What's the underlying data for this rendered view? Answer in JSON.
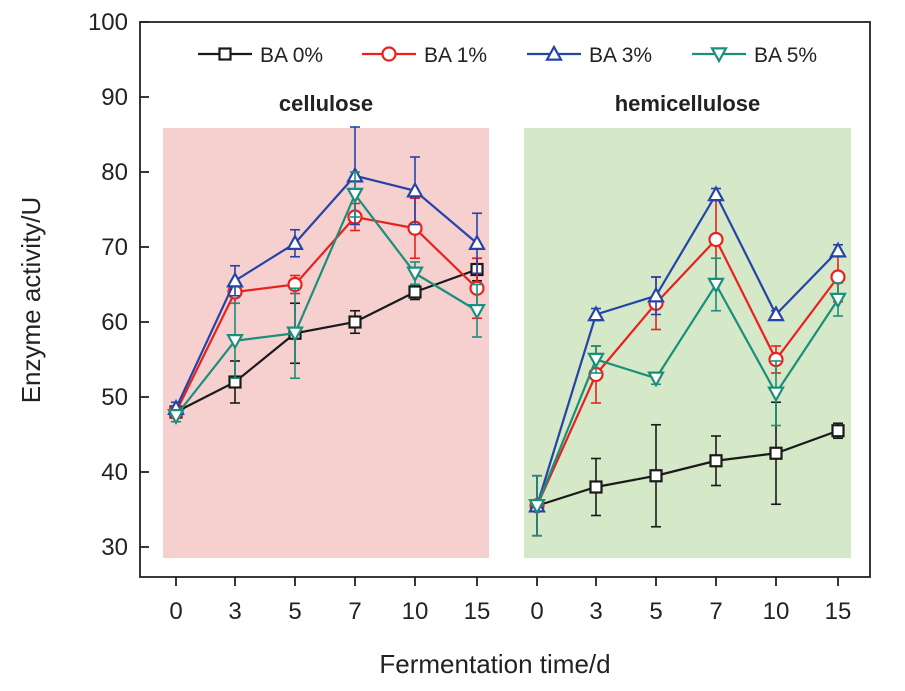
{
  "chart_data": {
    "type": "line",
    "ylabel": "Enzyme activity/U",
    "xlabel": "Fermentation time/d",
    "ylim": [
      28,
      100
    ],
    "yticks": [
      30,
      40,
      50,
      60,
      70,
      80,
      90,
      100
    ],
    "x_ticks": [
      "0",
      "3",
      "5",
      "7",
      "10",
      "15"
    ],
    "legend_position": "top-right",
    "panels": [
      {
        "title": "cellulose",
        "background": "#f6cfcf",
        "series": [
          {
            "name": "BA 0%",
            "color": "#1a1a1a",
            "marker": "square",
            "values": [
              48,
              52,
              58.5,
              60,
              64,
              67
            ],
            "errors": [
              0.8,
              2.8,
              4,
              1.5,
              1,
              1.5
            ]
          },
          {
            "name": "BA 1%",
            "color": "#e8211f",
            "marker": "circle",
            "values": [
              48,
              64,
              65,
              74,
              72.5,
              64.5
            ],
            "errors": [
              0.8,
              1.5,
              1.2,
              1.8,
              4,
              4
            ]
          },
          {
            "name": "BA 3%",
            "color": "#2444a8",
            "marker": "triangle-up",
            "values": [
              48.5,
              65.5,
              70.5,
              79.5,
              77.5,
              70.5
            ],
            "errors": [
              0.8,
              2,
              1.8,
              6.5,
              4.5,
              4
            ]
          },
          {
            "name": "BA 5%",
            "color": "#1a8f7a",
            "marker": "triangle-down",
            "values": [
              47.5,
              57.5,
              58.5,
              77,
              66.5,
              61.5
            ],
            "errors": [
              0.8,
              5,
              6,
              3,
              1.5,
              3.5
            ]
          }
        ]
      },
      {
        "title": "hemicellulose",
        "background": "#d5e8c8",
        "series": [
          {
            "name": "BA 0%",
            "color": "#1a1a1a",
            "marker": "square",
            "values": [
              35.5,
              38,
              39.5,
              41.5,
              42.5,
              45.5
            ],
            "errors": [
              4,
              3.8,
              6.8,
              3.3,
              6.8,
              1
            ]
          },
          {
            "name": "BA 1%",
            "color": "#e8211f",
            "marker": "circle",
            "values": [
              35.5,
              53,
              62.5,
              71,
              55,
              66
            ],
            "errors": [
              4,
              3.8,
              3.5,
              5.5,
              1.8,
              3.3
            ]
          },
          {
            "name": "BA 3%",
            "color": "#2444a8",
            "marker": "triangle-up",
            "values": [
              35.5,
              61,
              63.5,
              77,
              61,
              69.5
            ],
            "errors": [
              4,
              0.8,
              2.5,
              0.8,
              0.5,
              0.8
            ]
          },
          {
            "name": "BA 5%",
            "color": "#1a8f7a",
            "marker": "triangle-down",
            "values": [
              35.5,
              55,
              52.5,
              65,
              50.5,
              63
            ],
            "errors": [
              4,
              1.8,
              0.8,
              3.5,
              4.3,
              2.2
            ]
          }
        ]
      }
    ]
  }
}
